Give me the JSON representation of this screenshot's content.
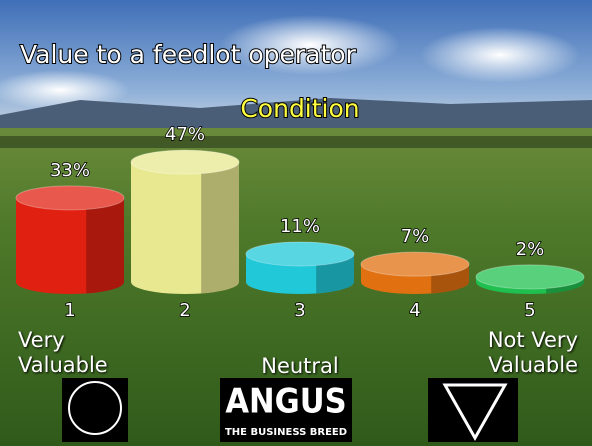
{
  "chart_data": {
    "type": "cylinder-bar",
    "title": "Value to a feedlot operator",
    "subtitle": "Condition",
    "categories": [
      "1",
      "2",
      "3",
      "4",
      "5"
    ],
    "values": [
      33,
      47,
      11,
      7,
      2
    ],
    "value_labels": [
      "33%",
      "47%",
      "11%",
      "7%",
      "2%"
    ],
    "colors": [
      "#e02010",
      "#e8e890",
      "#20c8d8",
      "#e07010",
      "#20c050"
    ],
    "annotations": [
      "Very Valuable",
      "Neutral",
      "Not Very Valuable"
    ],
    "logos": [
      "ANGUS",
      "THE BUSINESS BREED"
    ]
  }
}
